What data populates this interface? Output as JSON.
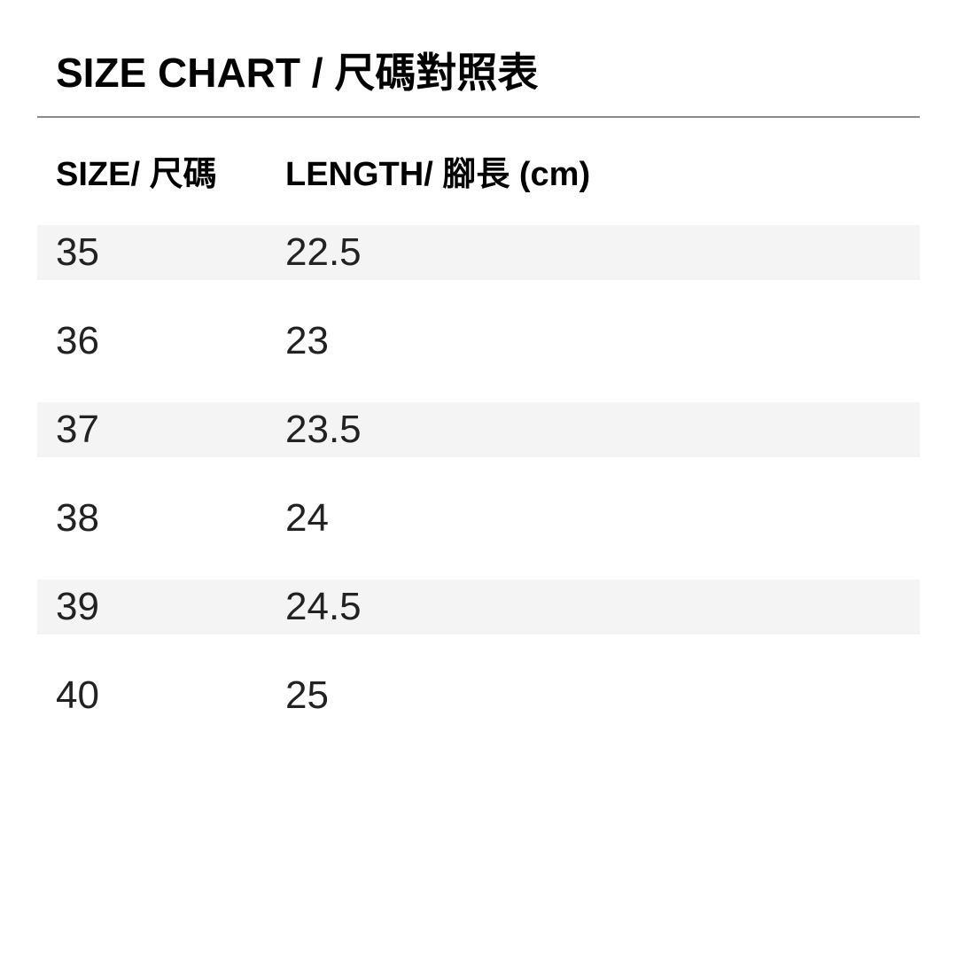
{
  "title": "SIZE CHART / 尺碼對照表",
  "table": {
    "headers": {
      "size": "SIZE/ 尺碼",
      "length": "LENGTH/ 腳長 (cm)"
    },
    "rows": [
      {
        "size": "35",
        "length": "22.5"
      },
      {
        "size": "36",
        "length": "23"
      },
      {
        "size": "37",
        "length": "23.5"
      },
      {
        "size": "38",
        "length": "24"
      },
      {
        "size": "39",
        "length": "24.5"
      },
      {
        "size": "40",
        "length": "25"
      }
    ]
  },
  "colors": {
    "row_alt_bg": "#f4f4f5",
    "divider": "#8a8a8a",
    "title_text": "#000000",
    "body_text": "#222222",
    "background": "#ffffff"
  }
}
